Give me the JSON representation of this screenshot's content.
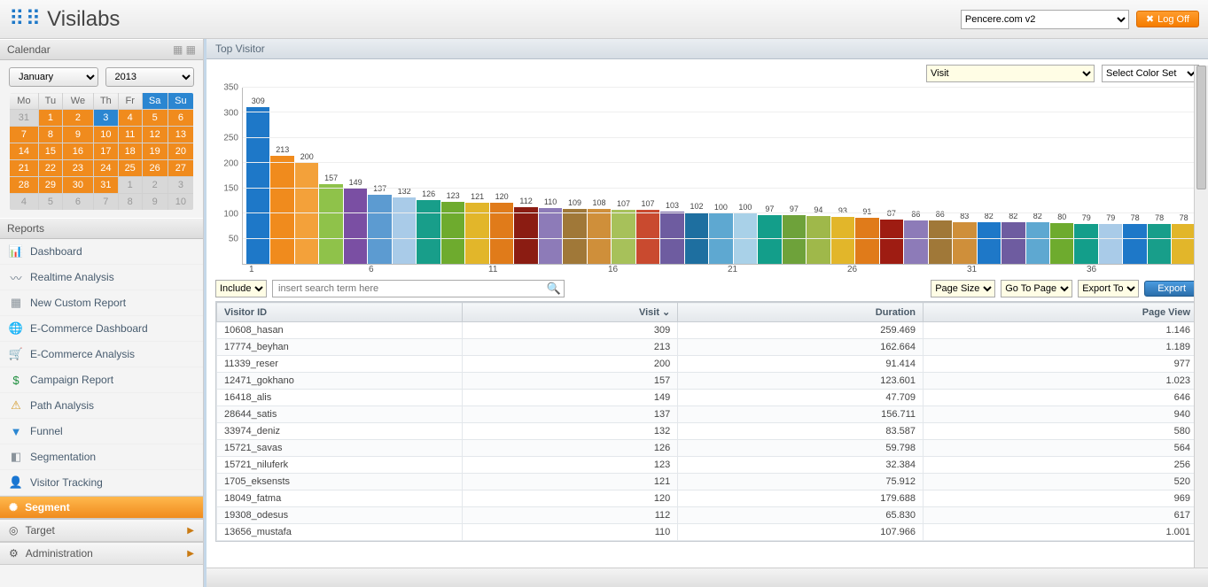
{
  "header": {
    "brand": "Visilabs",
    "site_options": [
      "Pencere.com v2"
    ],
    "site_selected": "Pencere.com v2",
    "logoff_label": "Log Off"
  },
  "calendar": {
    "title": "Calendar",
    "month_label": "January",
    "year_label": "2013",
    "dow": [
      "Mo",
      "Tu",
      "We",
      "Th",
      "Fr",
      "Sa",
      "Su"
    ],
    "rows": [
      [
        {
          "d": "31",
          "dim": true
        },
        {
          "d": "1"
        },
        {
          "d": "2"
        },
        {
          "d": "3",
          "sel": true
        },
        {
          "d": "4"
        },
        {
          "d": "5"
        },
        {
          "d": "6"
        }
      ],
      [
        {
          "d": "7"
        },
        {
          "d": "8"
        },
        {
          "d": "9"
        },
        {
          "d": "10"
        },
        {
          "d": "11"
        },
        {
          "d": "12"
        },
        {
          "d": "13"
        }
      ],
      [
        {
          "d": "14"
        },
        {
          "d": "15"
        },
        {
          "d": "16"
        },
        {
          "d": "17"
        },
        {
          "d": "18"
        },
        {
          "d": "19"
        },
        {
          "d": "20"
        }
      ],
      [
        {
          "d": "21"
        },
        {
          "d": "22"
        },
        {
          "d": "23"
        },
        {
          "d": "24"
        },
        {
          "d": "25"
        },
        {
          "d": "26"
        },
        {
          "d": "27"
        }
      ],
      [
        {
          "d": "28"
        },
        {
          "d": "29"
        },
        {
          "d": "30"
        },
        {
          "d": "31"
        },
        {
          "d": "1",
          "dim": true
        },
        {
          "d": "2",
          "dim": true
        },
        {
          "d": "3",
          "dim": true
        }
      ],
      [
        {
          "d": "4",
          "dim": true
        },
        {
          "d": "5",
          "dim": true
        },
        {
          "d": "6",
          "dim": true
        },
        {
          "d": "7",
          "dim": true
        },
        {
          "d": "8",
          "dim": true
        },
        {
          "d": "9",
          "dim": true
        },
        {
          "d": "10",
          "dim": true
        }
      ]
    ]
  },
  "reports": {
    "title": "Reports",
    "items": [
      {
        "icon": "📊",
        "icon_color": "#e07b1a",
        "label": "Dashboard"
      },
      {
        "icon": "〰",
        "icon_color": "#6b7a88",
        "label": "Realtime Analysis"
      },
      {
        "icon": "▦",
        "icon_color": "#8a939b",
        "label": "New Custom Report"
      },
      {
        "icon": "🌐",
        "icon_color": "#c0392b",
        "label": "E-Commerce Dashboard"
      },
      {
        "icon": "🛒",
        "icon_color": "#1e8e3e",
        "label": "E-Commerce Analysis"
      },
      {
        "icon": "$",
        "icon_color": "#1e8e3e",
        "label": "Campaign Report"
      },
      {
        "icon": "⚠",
        "icon_color": "#d49a2a",
        "label": "Path Analysis"
      },
      {
        "icon": "▼",
        "icon_color": "#2b86d1",
        "label": "Funnel"
      },
      {
        "icon": "◧",
        "icon_color": "#8a939b",
        "label": "Segmentation"
      },
      {
        "icon": "👤",
        "icon_color": "#c0392b",
        "label": "Visitor Tracking"
      }
    ],
    "groups": [
      {
        "icon": "✺",
        "label": "Segment",
        "active": true
      },
      {
        "icon": "◎",
        "label": "Target",
        "active": false
      },
      {
        "icon": "⚙",
        "label": "Administration",
        "active": false
      }
    ]
  },
  "main": {
    "title": "Top Visitor",
    "metric_select": "Visit",
    "colorset_select": "Select Color Set",
    "chart": {
      "ymax": 350,
      "ytick_step": 50,
      "yticks": [
        350,
        300,
        250,
        200,
        150,
        100,
        50
      ],
      "xticks": [
        "1",
        "6",
        "11",
        "16",
        "21",
        "26",
        "31",
        "36"
      ],
      "bars": [
        {
          "v": 309,
          "c": "#1e78c8"
        },
        {
          "v": 213,
          "c": "#f08b1d"
        },
        {
          "v": 200,
          "c": "#f3a13a"
        },
        {
          "v": 157,
          "c": "#8fc24a"
        },
        {
          "v": 149,
          "c": "#7a4fa3"
        },
        {
          "v": 137,
          "c": "#5c9bd1"
        },
        {
          "v": 132,
          "c": "#a9cbe8"
        },
        {
          "v": 126,
          "c": "#189e8a"
        },
        {
          "v": 123,
          "c": "#6eab2e"
        },
        {
          "v": 121,
          "c": "#e2b62a"
        },
        {
          "v": 120,
          "c": "#e07b1a"
        },
        {
          "v": 112,
          "c": "#8b1c12"
        },
        {
          "v": 110,
          "c": "#8d7bb8"
        },
        {
          "v": 109,
          "c": "#a07838"
        },
        {
          "v": 108,
          "c": "#cf8f3a"
        },
        {
          "v": 107,
          "c": "#a7c15a"
        },
        {
          "v": 107,
          "c": "#c94a2f"
        },
        {
          "v": 103,
          "c": "#6e5ca0"
        },
        {
          "v": 102,
          "c": "#1e6fa0"
        },
        {
          "v": 100,
          "c": "#5ea8d1"
        },
        {
          "v": 100,
          "c": "#a9d1e8"
        },
        {
          "v": 97,
          "c": "#139e8a"
        },
        {
          "v": 97,
          "c": "#6ea23a"
        },
        {
          "v": 94,
          "c": "#9fb84a"
        },
        {
          "v": 93,
          "c": "#e2b62a"
        },
        {
          "v": 91,
          "c": "#e07b1a"
        },
        {
          "v": 87,
          "c": "#9e1c12"
        },
        {
          "v": 86,
          "c": "#8d7bb8"
        },
        {
          "v": 86,
          "c": "#a07838"
        },
        {
          "v": 83,
          "c": "#cf8f3a"
        },
        {
          "v": 82,
          "c": "#1e78c8"
        },
        {
          "v": 82,
          "c": "#6e5ca0"
        },
        {
          "v": 82,
          "c": "#5ea8d1"
        },
        {
          "v": 80,
          "c": "#6eab2e"
        },
        {
          "v": 79,
          "c": "#139e8a"
        },
        {
          "v": 79,
          "c": "#a9cbe8"
        },
        {
          "v": 78,
          "c": "#1e78c8"
        },
        {
          "v": 78,
          "c": "#189e8a"
        },
        {
          "v": 78,
          "c": "#e2b62a"
        }
      ]
    },
    "toolbar": {
      "include_label": "Include",
      "search_placeholder": "insert search term here",
      "page_size_label": "Page Size",
      "goto_page_label": "Go To Page",
      "export_to_label": "Export To",
      "export_btn": "Export"
    },
    "grid": {
      "columns": [
        {
          "label": "Visitor ID",
          "align": "left",
          "width": "25%"
        },
        {
          "label": "Visit",
          "align": "right",
          "width": "22%",
          "sort": "desc"
        },
        {
          "label": "Duration",
          "align": "right",
          "width": "25%"
        },
        {
          "label": "Page View",
          "align": "right",
          "width": "28%"
        }
      ],
      "rows": [
        [
          "10608_hasan",
          "309",
          "259.469",
          "1.146"
        ],
        [
          "17774_beyhan",
          "213",
          "162.664",
          "1.189"
        ],
        [
          "11339_reser",
          "200",
          "91.414",
          "977"
        ],
        [
          "12471_gokhano",
          "157",
          "123.601",
          "1.023"
        ],
        [
          "16418_alis",
          "149",
          "47.709",
          "646"
        ],
        [
          "28644_satis",
          "137",
          "156.711",
          "940"
        ],
        [
          "33974_deniz",
          "132",
          "83.587",
          "580"
        ],
        [
          "15721_savas",
          "126",
          "59.798",
          "564"
        ],
        [
          "15721_niluferk",
          "123",
          "32.384",
          "256"
        ],
        [
          "1705_eksensts",
          "121",
          "75.912",
          "520"
        ],
        [
          "18049_fatma",
          "120",
          "179.688",
          "969"
        ],
        [
          "19308_odesus",
          "112",
          "65.830",
          "617"
        ],
        [
          "13656_mustafa",
          "110",
          "107.966",
          "1.001"
        ]
      ]
    }
  }
}
